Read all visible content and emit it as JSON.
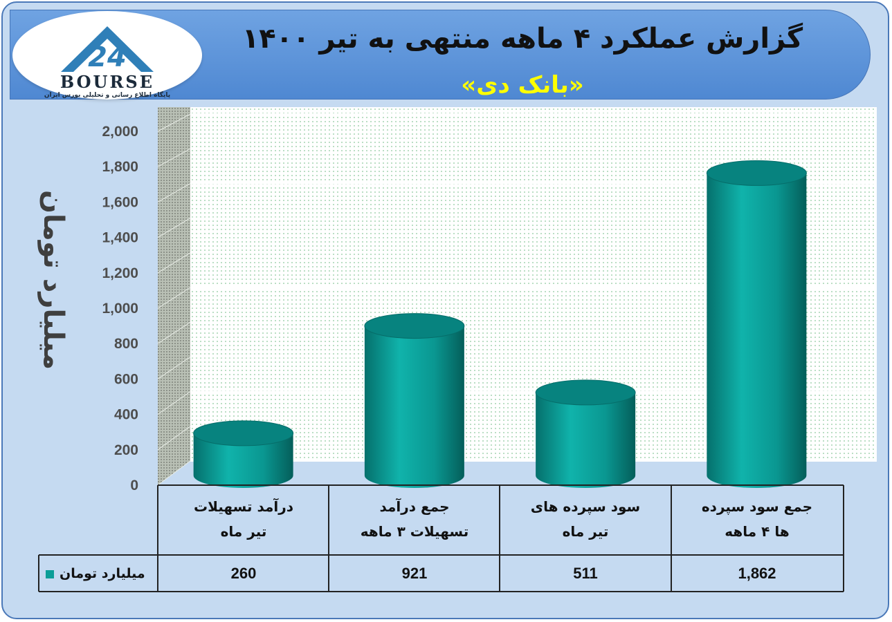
{
  "header": {
    "title": "گزارش عملکرد ۴ ماهه منتهی به تیر ۱۴۰۰",
    "subtitle": "«بانک دی»"
  },
  "logo": {
    "wordmark": "BOURSE",
    "number": "24",
    "tagline": "پایگاه اطلاع رسانی و تحلیلی بورس ایران"
  },
  "colors": {
    "bar": "#0b9e98",
    "bar_dark": "#056c69",
    "bar_top": "#07837f",
    "background": "#c5daf1",
    "banner": "#5b93d8",
    "title_accent": "#ffff00"
  },
  "chart_data": {
    "type": "bar",
    "title": "گزارش عملکرد ۴ ماهه منتهی به تیر ۱۴۰۰",
    "subtitle": "«بانک دی»",
    "ylabel": "میلیارد تومان",
    "ylim": [
      0,
      2000
    ],
    "yticks": [
      "0",
      "200",
      "400",
      "600",
      "800",
      "1,000",
      "1,200",
      "1,400",
      "1,600",
      "1,800",
      "2,000"
    ],
    "grid": true,
    "categories": [
      [
        "درآمد تسهیلات",
        "تیر ماه"
      ],
      [
        "جمع درآمد",
        "تسهیلات ۳ ماهه"
      ],
      [
        "سود سپرده های",
        "تیر ماه"
      ],
      [
        "جمع سود سپرده",
        "ها ۴ ماهه"
      ]
    ],
    "series": [
      {
        "name": "میلیارد تومان",
        "values": [
          260,
          921,
          511,
          1862
        ],
        "labels": [
          "260",
          "921",
          "511",
          "1,862"
        ]
      }
    ],
    "legend": "data-table"
  }
}
